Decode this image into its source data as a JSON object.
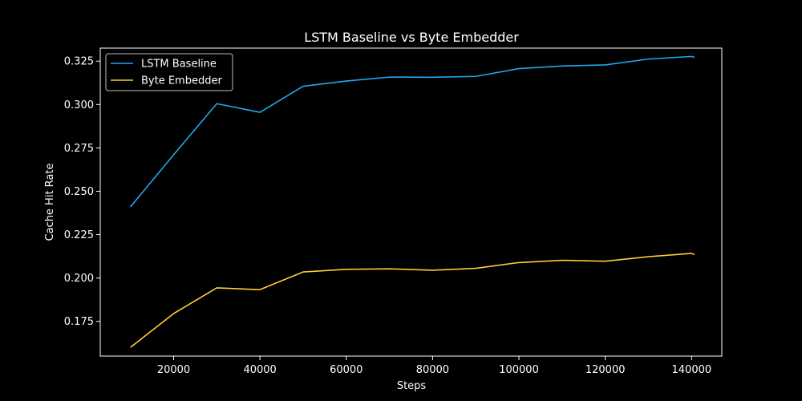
{
  "chart_data": {
    "type": "line",
    "title": "LSTM Baseline vs Byte Embedder",
    "xlabel": "Steps",
    "ylabel": "Cache Hit Rate",
    "xlim": [
      3000,
      147000
    ],
    "ylim": [
      0.155,
      0.3325
    ],
    "xticks": [
      20000,
      40000,
      60000,
      80000,
      100000,
      120000,
      140000
    ],
    "xtick_labels": [
      "20000",
      "40000",
      "60000",
      "80000",
      "100000",
      "120000",
      "140000"
    ],
    "yticks": [
      0.175,
      0.2,
      0.225,
      0.25,
      0.275,
      0.3,
      0.325
    ],
    "ytick_labels": [
      "0.175",
      "0.200",
      "0.225",
      "0.250",
      "0.275",
      "0.300",
      "0.325"
    ],
    "grid": false,
    "legend_position": "top-left",
    "series": [
      {
        "name": "LSTM Baseline",
        "color": "#1fa8f0",
        "x": [
          10000,
          20000,
          30000,
          40000,
          50000,
          60000,
          70000,
          80000,
          90000,
          100000,
          110000,
          120000,
          130000,
          140000,
          140700
        ],
        "y": [
          0.241,
          0.271,
          0.3005,
          0.2955,
          0.3105,
          0.3135,
          0.3158,
          0.3157,
          0.3162,
          0.3207,
          0.3222,
          0.3228,
          0.3262,
          0.3277,
          0.3272
        ]
      },
      {
        "name": "Byte Embedder",
        "color": "#ffcc33",
        "x": [
          10000,
          20000,
          30000,
          40000,
          50000,
          60000,
          70000,
          80000,
          90000,
          100000,
          110000,
          120000,
          130000,
          140000,
          140700
        ],
        "y": [
          0.16,
          0.1795,
          0.1943,
          0.1933,
          0.2035,
          0.205,
          0.2053,
          0.2045,
          0.2056,
          0.2089,
          0.2102,
          0.2097,
          0.2123,
          0.2142,
          0.2135
        ]
      }
    ]
  }
}
